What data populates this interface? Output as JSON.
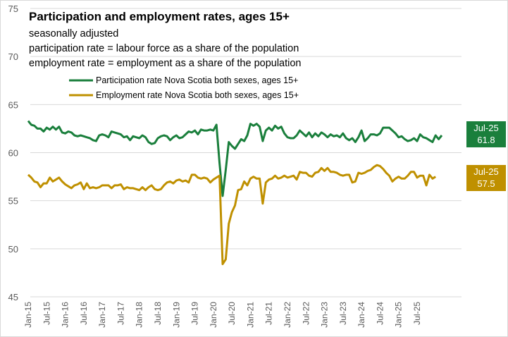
{
  "chart_data": {
    "type": "line",
    "title": "Participation and employment rates, ages 15+",
    "subtitles": [
      "seasonally adjusted",
      "participation rate = labour force as a share of the population",
      "employment rate = employment as a share of the population"
    ],
    "ylim": [
      45,
      75
    ],
    "yticks": [
      45,
      50,
      55,
      60,
      65,
      70,
      75
    ],
    "xtick_labels": [
      "Jan-15",
      "Jul-15",
      "Jan-16",
      "Jul-16",
      "Jan-17",
      "Jul-17",
      "Jan-18",
      "Jul-18",
      "Jan-19",
      "Jul-19",
      "Jan-20",
      "Jul-20",
      "Jan-21",
      "Jul-21",
      "Jan-22",
      "Jul-22",
      "Jan-23",
      "Jul-23",
      "Jan-24",
      "Jul-24",
      "Jan-25",
      "Jul-25"
    ],
    "start": "Jan-15",
    "end": "Jul-25",
    "grid": true,
    "series": [
      {
        "name": "Participation rate Nova Scotia both sexes, ages 15+",
        "color": "#1a7f3c",
        "values": [
          63.3,
          62.9,
          62.8,
          62.5,
          62.5,
          62.2,
          62.6,
          62.4,
          62.7,
          62.4,
          62.7,
          62.1,
          62.0,
          62.2,
          62.1,
          61.8,
          61.7,
          61.8,
          61.7,
          61.6,
          61.5,
          61.3,
          61.2,
          61.8,
          61.9,
          61.8,
          61.6,
          62.2,
          62.1,
          62.0,
          61.9,
          61.6,
          61.7,
          61.3,
          61.7,
          61.6,
          61.5,
          61.8,
          61.6,
          61.1,
          60.9,
          61.0,
          61.5,
          61.7,
          61.8,
          61.7,
          61.3,
          61.6,
          61.8,
          61.5,
          61.6,
          61.9,
          62.2,
          62.1,
          62.3,
          61.9,
          62.4,
          62.3,
          62.3,
          62.4,
          62.3,
          62.9,
          58.9,
          55.5,
          58.2,
          61.1,
          60.7,
          60.4,
          60.9,
          61.4,
          61.2,
          61.8,
          63.0,
          62.8,
          63.0,
          62.7,
          61.2,
          62.3,
          62.6,
          62.3,
          62.8,
          62.5,
          62.7,
          62.0,
          61.6,
          61.5,
          61.5,
          61.8,
          62.3,
          62.0,
          61.7,
          62.1,
          61.6,
          62.0,
          61.7,
          62.1,
          61.9,
          61.6,
          61.9,
          61.7,
          61.8,
          61.6,
          62.0,
          61.5,
          61.3,
          61.5,
          61.1,
          61.6,
          62.3,
          61.2,
          61.5,
          61.9,
          61.9,
          61.8,
          62.0,
          62.6,
          62.6,
          62.6,
          62.3,
          62.0,
          61.6,
          61.7,
          61.4,
          61.2,
          61.3,
          61.5,
          61.2,
          61.9,
          61.6,
          61.5,
          61.3,
          61.1,
          61.8,
          61.4,
          61.8
        ]
      },
      {
        "name": "Employment rate Nova Scotia both sexes, ages 15+",
        "color": "#bf9000",
        "values": [
          57.7,
          57.4,
          57.0,
          56.9,
          56.4,
          56.8,
          56.8,
          57.4,
          57.0,
          57.2,
          57.4,
          57.0,
          56.7,
          56.5,
          56.3,
          56.6,
          56.7,
          56.9,
          56.2,
          56.8,
          56.3,
          56.4,
          56.3,
          56.4,
          56.6,
          56.6,
          56.6,
          56.3,
          56.6,
          56.6,
          56.7,
          56.2,
          56.4,
          56.3,
          56.3,
          56.2,
          56.1,
          56.4,
          56.1,
          56.4,
          56.6,
          56.2,
          56.1,
          56.2,
          56.6,
          56.9,
          57.0,
          56.8,
          57.1,
          57.2,
          57.0,
          57.1,
          56.9,
          57.7,
          57.7,
          57.4,
          57.3,
          57.4,
          57.3,
          56.9,
          57.2,
          57.4,
          57.6,
          48.4,
          48.9,
          52.6,
          53.8,
          54.5,
          56.1,
          56.2,
          57.0,
          56.6,
          57.3,
          57.5,
          57.3,
          57.3,
          54.7,
          56.9,
          57.2,
          57.3,
          57.6,
          57.3,
          57.4,
          57.6,
          57.4,
          57.5,
          57.6,
          57.2,
          58.0,
          57.9,
          57.9,
          57.6,
          57.5,
          57.9,
          58.0,
          58.4,
          58.1,
          58.4,
          58.0,
          58.0,
          57.9,
          57.7,
          57.6,
          57.7,
          57.7,
          56.9,
          57.0,
          57.9,
          57.8,
          57.9,
          58.1,
          58.2,
          58.5,
          58.7,
          58.6,
          58.3,
          57.9,
          57.6,
          57.0,
          57.3,
          57.5,
          57.3,
          57.3,
          57.6,
          58.0,
          58.0,
          57.4,
          57.6,
          57.6,
          56.6,
          57.7,
          57.3,
          57.5
        ]
      }
    ],
    "callouts": [
      {
        "label": "Jul-25",
        "value": "61.8",
        "color": "#1a7f3c"
      },
      {
        "label": "Jul-25",
        "value": "57.5",
        "color": "#bf9000"
      }
    ]
  }
}
